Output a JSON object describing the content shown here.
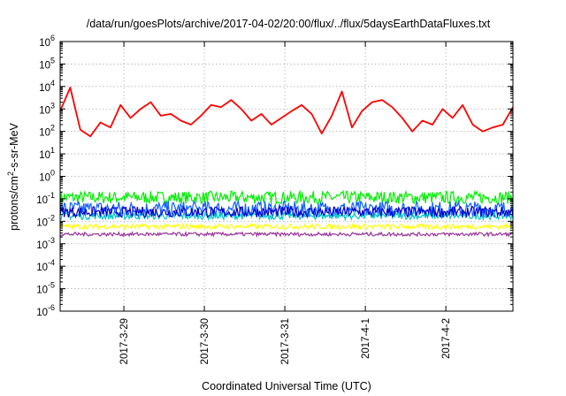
{
  "chart_data": {
    "type": "line",
    "title": "/data/run/goesPlots/archive/2017-04-02/20:00/flux/../flux/5daysEarthDataFluxes.txt",
    "xlabel": "Coordinated Universal Time (UTC)",
    "ylabel": "protons/cm²-s-sr-MeV",
    "ylabel_parts": {
      "base": "protons/cm",
      "sup": "2",
      "rest": "-s-sr-MeV"
    },
    "x_ticks": [
      "2017-3-29",
      "2017-3-30",
      "2017-3-31",
      "2017-4-1",
      "2017-4-2"
    ],
    "x_range": [
      "2017-03-28 05:00",
      "2017-04-02 20:00"
    ],
    "y_scale": "log",
    "y_ticks": [
      {
        "base": "10",
        "exp": "6"
      },
      {
        "base": "10",
        "exp": "5"
      },
      {
        "base": "10",
        "exp": "4"
      },
      {
        "base": "10",
        "exp": "3"
      },
      {
        "base": "10",
        "exp": "2"
      },
      {
        "base": "10",
        "exp": "1"
      },
      {
        "base": "10",
        "exp": "0"
      },
      {
        "base": "10",
        "exp": "-1"
      },
      {
        "base": "10",
        "exp": "-2"
      },
      {
        "base": "10",
        "exp": "-3"
      },
      {
        "base": "10",
        "exp": "-4"
      },
      {
        "base": "10",
        "exp": "-5"
      },
      {
        "base": "10",
        "exp": "-6"
      }
    ],
    "ylim": [
      1e-06,
      1000000.0
    ],
    "grid": true,
    "series": [
      {
        "color": "#ff0000",
        "x": [
          "2017-03-28 05:00",
          "2017-03-28 08:00",
          "2017-03-28 11:00",
          "2017-03-28 14:00",
          "2017-03-28 17:00",
          "2017-03-28 20:00",
          "2017-03-28 23:00",
          "2017-03-29 02:00",
          "2017-03-29 05:00",
          "2017-03-29 08:00",
          "2017-03-29 11:00",
          "2017-03-29 14:00",
          "2017-03-29 17:00",
          "2017-03-29 20:00",
          "2017-03-29 23:00",
          "2017-03-30 02:00",
          "2017-03-30 05:00",
          "2017-03-30 08:00",
          "2017-03-30 11:00",
          "2017-03-30 14:00",
          "2017-03-30 17:00",
          "2017-03-30 20:00",
          "2017-03-30 23:00",
          "2017-03-31 02:00",
          "2017-03-31 05:00",
          "2017-03-31 08:00",
          "2017-03-31 11:00",
          "2017-03-31 14:00",
          "2017-03-31 17:00",
          "2017-03-31 20:00",
          "2017-03-31 23:00",
          "2017-04-01 02:00",
          "2017-04-01 05:00",
          "2017-04-01 08:00",
          "2017-04-01 11:00",
          "2017-04-01 14:00",
          "2017-04-01 17:00",
          "2017-04-01 20:00",
          "2017-04-01 23:00",
          "2017-04-02 02:00",
          "2017-04-02 05:00",
          "2017-04-02 08:00",
          "2017-04-02 11:00",
          "2017-04-02 14:00",
          "2017-04-02 17:00",
          "2017-04-02 20:00"
        ],
        "values": [
          800,
          9000,
          120,
          60,
          250,
          150,
          1500,
          400,
          1000,
          2000,
          500,
          600,
          300,
          200,
          500,
          1500,
          1200,
          2500,
          1000,
          300,
          600,
          200,
          400,
          800,
          1500,
          600,
          80,
          500,
          6000,
          150,
          800,
          2000,
          2500,
          1200,
          400,
          100,
          300,
          200,
          1000,
          400,
          1500,
          200,
          100,
          150,
          200,
          1200
        ]
      },
      {
        "color": "#00ee00",
        "band": [
          0.06,
          0.22
        ]
      },
      {
        "color": "#1060ff",
        "band": [
          0.015,
          0.08
        ]
      },
      {
        "color": "#00c8c8",
        "band": [
          0.012,
          0.025
        ]
      },
      {
        "color": "#0000cc",
        "band": [
          0.015,
          0.045
        ]
      },
      {
        "color": "#ffff00",
        "band": [
          0.0045,
          0.0075
        ]
      },
      {
        "color": "#993399",
        "band": [
          0.0022,
          0.0032
        ]
      }
    ]
  }
}
